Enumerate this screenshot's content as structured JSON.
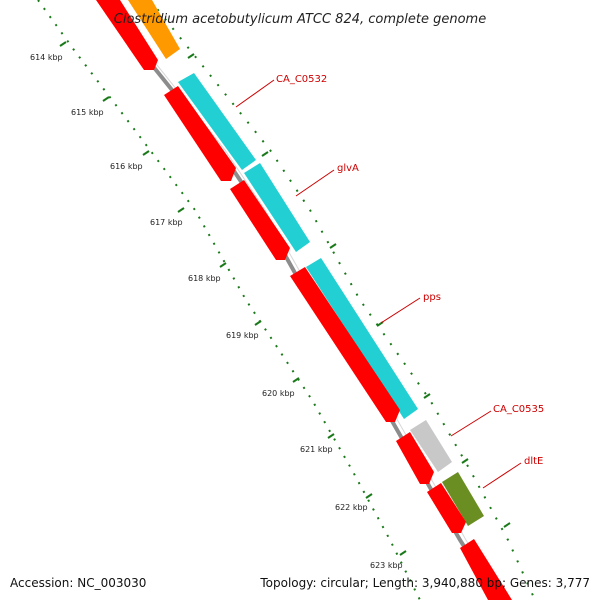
{
  "title": "Clostridium acetobutylicum ATCC 824, complete genome",
  "footer": {
    "accession": "Accession: NC_003030",
    "topology": "Topology: circular; Length: 3,940,880 bp; Genes: 3,777"
  },
  "kbp_labels": [
    "614 kbp",
    "615 kbp",
    "616 kbp",
    "617 kbp",
    "618 kbp",
    "619 kbp",
    "620 kbp",
    "621 kbp",
    "622 kbp",
    "623 kbp"
  ],
  "gene_labels": [
    "CA_C0532",
    "glvA",
    "pps",
    "CA_C0535",
    "dltE"
  ],
  "colors": {
    "backbone": "#8c8c8c",
    "tick": "#1a7a1a",
    "forward_cds": "#ff0000",
    "cyan_feature": "#22d0d4",
    "orange_feature": "#ff9900",
    "gray_feature": "#c8c8c8",
    "olive_feature": "#6b8e23",
    "label": "#cc0000"
  }
}
